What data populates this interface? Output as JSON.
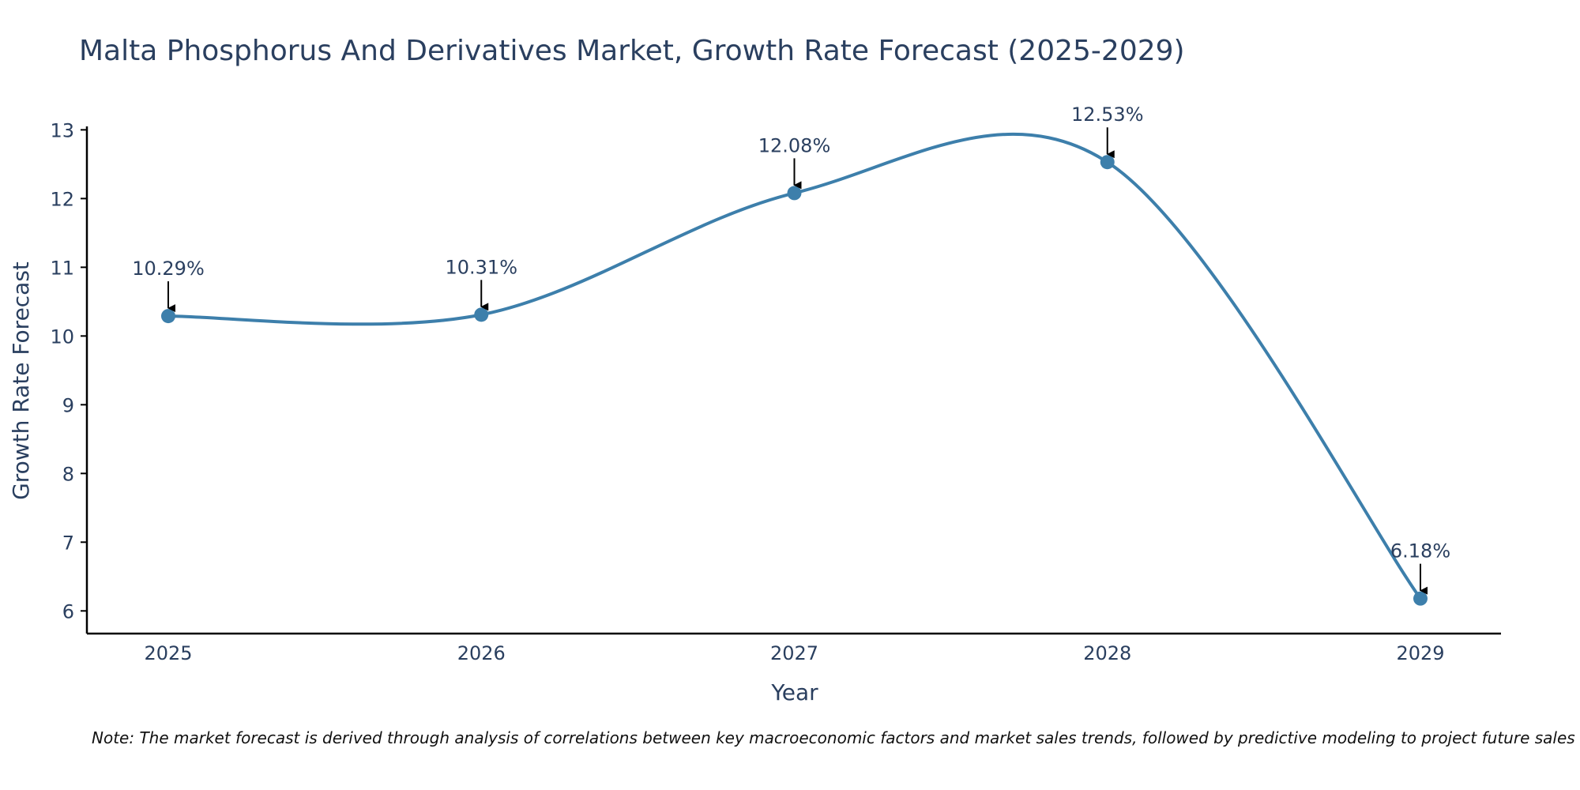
{
  "chart_data": {
    "type": "line",
    "title": "Malta Phosphorus And Derivatives Market, Growth Rate Forecast (2025-2029)",
    "xlabel": "Year",
    "ylabel": "Growth Rate Forecast",
    "categories": [
      "2025",
      "2026",
      "2027",
      "2028",
      "2029"
    ],
    "series": [
      {
        "name": "Growth Rate Forecast",
        "values": [
          10.29,
          10.31,
          12.08,
          12.53,
          6.18
        ],
        "labels": [
          "10.29%",
          "10.31%",
          "12.08%",
          "12.53%",
          "6.18%"
        ],
        "color": "#3d7fab",
        "smoothing": "spline"
      }
    ],
    "yticks": [
      6,
      7,
      8,
      9,
      10,
      11,
      12,
      13
    ],
    "ylim": [
      5.67,
      13.05
    ],
    "grid": false,
    "legend": "none",
    "note": "Note: The market forecast is derived through analysis of correlations between key macroeconomic factors and market sales trends, followed by predictive modeling to project future sales"
  },
  "colors": {
    "line": "#3d7fab",
    "marker": "#3d7fab",
    "text": "#2a3f5f",
    "axis": "#000000",
    "arrow": "#000000"
  }
}
